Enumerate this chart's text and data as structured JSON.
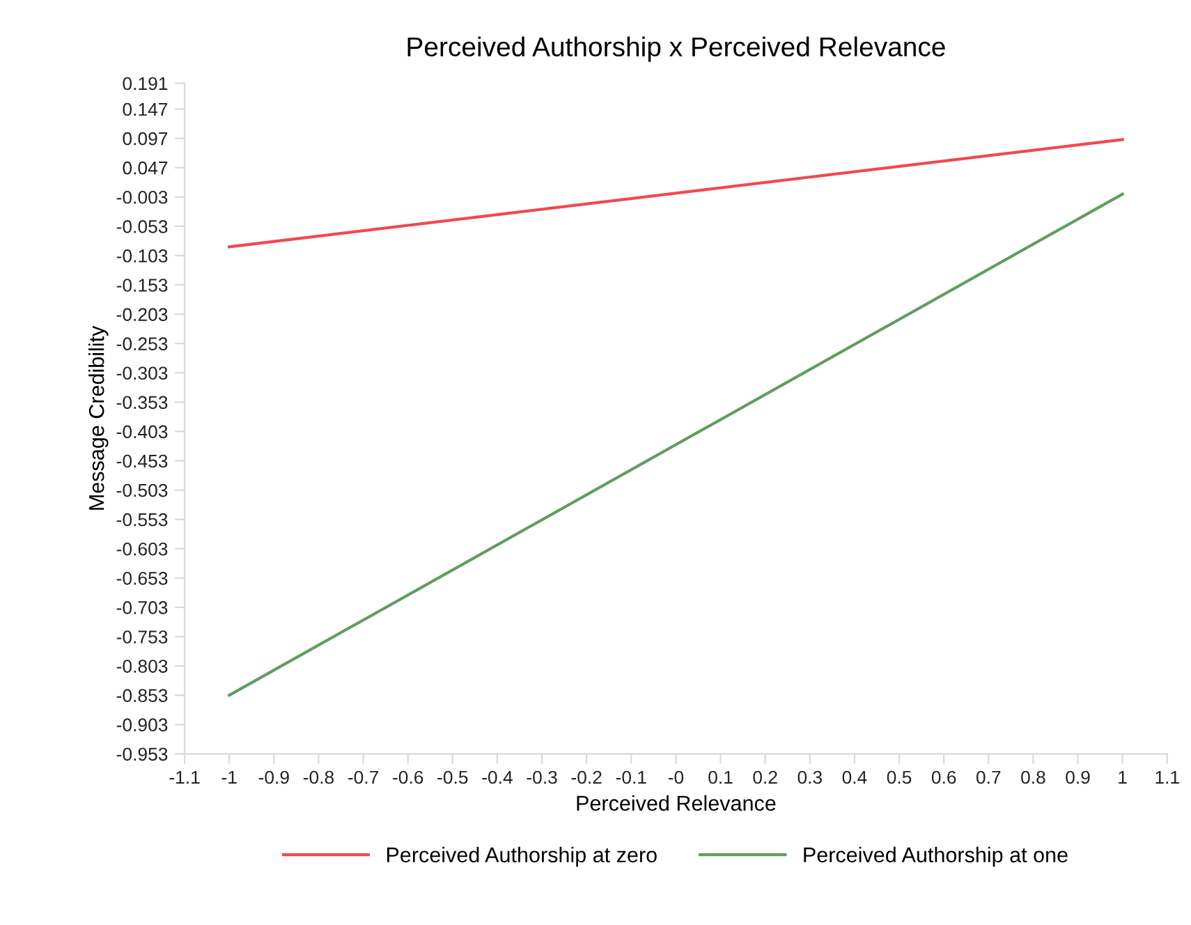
{
  "chart_data": {
    "type": "line",
    "title": "Perceived Authorship x Perceived Relevance",
    "xlabel": "Perceived Relevance",
    "ylabel": "Message Credibility",
    "x": [
      -1,
      1
    ],
    "series": [
      {
        "name": "Perceived Authorship at zero",
        "color": "#f0494f",
        "values": [
          -0.088,
          0.095
        ]
      },
      {
        "name": "Perceived Authorship at one",
        "color": "#5f9e5f",
        "values": [
          -0.853,
          0.002
        ]
      }
    ],
    "xlim": [
      -1.1,
      1.1
    ],
    "xticks": [
      -1.1,
      -1,
      -0.9,
      -0.8,
      -0.7,
      -0.6,
      -0.5,
      -0.4,
      -0.3,
      -0.2,
      -0.1,
      {
        "value": 0,
        "label": "-0"
      },
      0.1,
      0.2,
      0.3,
      0.4,
      0.5,
      0.6,
      0.7,
      0.8,
      0.9,
      1,
      1.1
    ],
    "ylim": [
      -0.953,
      0.191
    ],
    "yticks": [
      -0.953,
      -0.903,
      -0.853,
      -0.803,
      -0.753,
      -0.703,
      -0.653,
      -0.603,
      -0.553,
      -0.503,
      -0.453,
      -0.403,
      -0.353,
      -0.303,
      -0.253,
      -0.203,
      -0.153,
      -0.103,
      -0.053,
      -0.003,
      0.047,
      0.097,
      0.147,
      0.191
    ],
    "grid": false,
    "legend": "bottom",
    "marker": "none",
    "line_style": "solid"
  }
}
